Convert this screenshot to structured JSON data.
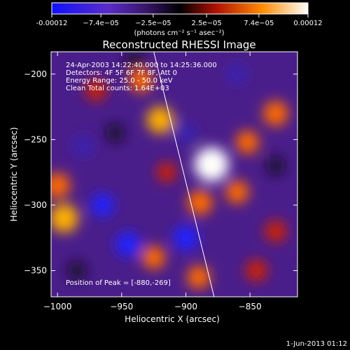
{
  "colorbar": {
    "tick_labels": [
      "-0.00012",
      "−7.4e−05",
      "−2.5e−05",
      "2.5e−05",
      "7.4e−05",
      "0.00012"
    ],
    "tick_values": [
      -0.00012,
      -7.4e-05,
      -2.5e-05,
      2.5e-05,
      7.4e-05,
      0.00012
    ],
    "range": [
      -0.00012,
      0.00012
    ],
    "unit_label": "(photons cm⁻² s⁻¹ asec⁻²)",
    "colors": [
      "#1010ff",
      "#6a2fb0",
      "#000000",
      "#c41a00",
      "#ff7a00",
      "#ffffff"
    ]
  },
  "chart_data": {
    "type": "heatmap",
    "title": "Reconstructed RHESSI Image",
    "xlabel": "Heliocentric X (arcsec)",
    "ylabel": "Heliocentric Y (arcsec)",
    "xlim": [
      -1005,
      -813
    ],
    "ylim": [
      -370,
      -183
    ],
    "x_ticks": [
      -1000,
      -950,
      -900,
      -850
    ],
    "y_ticks": [
      -200,
      -250,
      -300,
      -350
    ],
    "x_tick_labels": [
      "−1000",
      "−950",
      "−900",
      "−850"
    ],
    "y_tick_labels": [
      "−200",
      "−250",
      "−300",
      "−350"
    ],
    "limb_line": [
      [
        -925,
        -183
      ],
      [
        -878,
        -370
      ]
    ],
    "peak": [
      -880,
      -269
    ],
    "sources": [
      {
        "x": -880,
        "y": -269,
        "value": 0.00011
      },
      {
        "x": -889,
        "y": -298,
        "value": 6e-05
      },
      {
        "x": -860,
        "y": -290,
        "value": 5e-05
      },
      {
        "x": -852,
        "y": -252,
        "value": 5e-05
      },
      {
        "x": -830,
        "y": -230,
        "value": 6e-05
      },
      {
        "x": -920,
        "y": -235,
        "value": 7e-05
      },
      {
        "x": -935,
        "y": -205,
        "value": 5e-05
      },
      {
        "x": -970,
        "y": -212,
        "value": 4e-05
      },
      {
        "x": -995,
        "y": -310,
        "value": 8e-05
      },
      {
        "x": -1000,
        "y": -285,
        "value": 6e-05
      },
      {
        "x": -925,
        "y": -340,
        "value": 5e-05
      },
      {
        "x": -890,
        "y": -355,
        "value": 5e-05
      },
      {
        "x": -845,
        "y": -350,
        "value": 4e-05
      },
      {
        "x": -830,
        "y": -320,
        "value": 4e-05
      },
      {
        "x": -915,
        "y": -275,
        "value": 3e-05
      },
      {
        "x": -955,
        "y": -245,
        "value": -3e-05
      },
      {
        "x": -980,
        "y": -255,
        "value": -4e-05
      },
      {
        "x": -965,
        "y": -300,
        "value": -5e-05
      },
      {
        "x": -945,
        "y": -330,
        "value": -6e-05
      },
      {
        "x": -900,
        "y": -325,
        "value": -6e-05
      },
      {
        "x": -900,
        "y": -245,
        "value": -4e-05
      },
      {
        "x": -860,
        "y": -200,
        "value": -4e-05
      },
      {
        "x": -830,
        "y": -270,
        "value": -3e-05
      },
      {
        "x": -985,
        "y": -350,
        "value": -3e-05
      },
      {
        "x": -940,
        "y": -190,
        "value": -3e-05
      }
    ]
  },
  "annotations": {
    "time_range": "24-Apr-2003 14:22:40.000 to 14:25:36.000",
    "detectors": "Detectors: 4F 5F 6F 7F 8F, Att 0",
    "energy_range": "Energy Range: 25.0 - 50.0 keV",
    "clean_counts": "Clean    Total counts: 1.64E+03",
    "peak_position": "Position of Peak = [-880,-269]"
  },
  "footer": {
    "date": "1-Jun-2013 01:12"
  }
}
